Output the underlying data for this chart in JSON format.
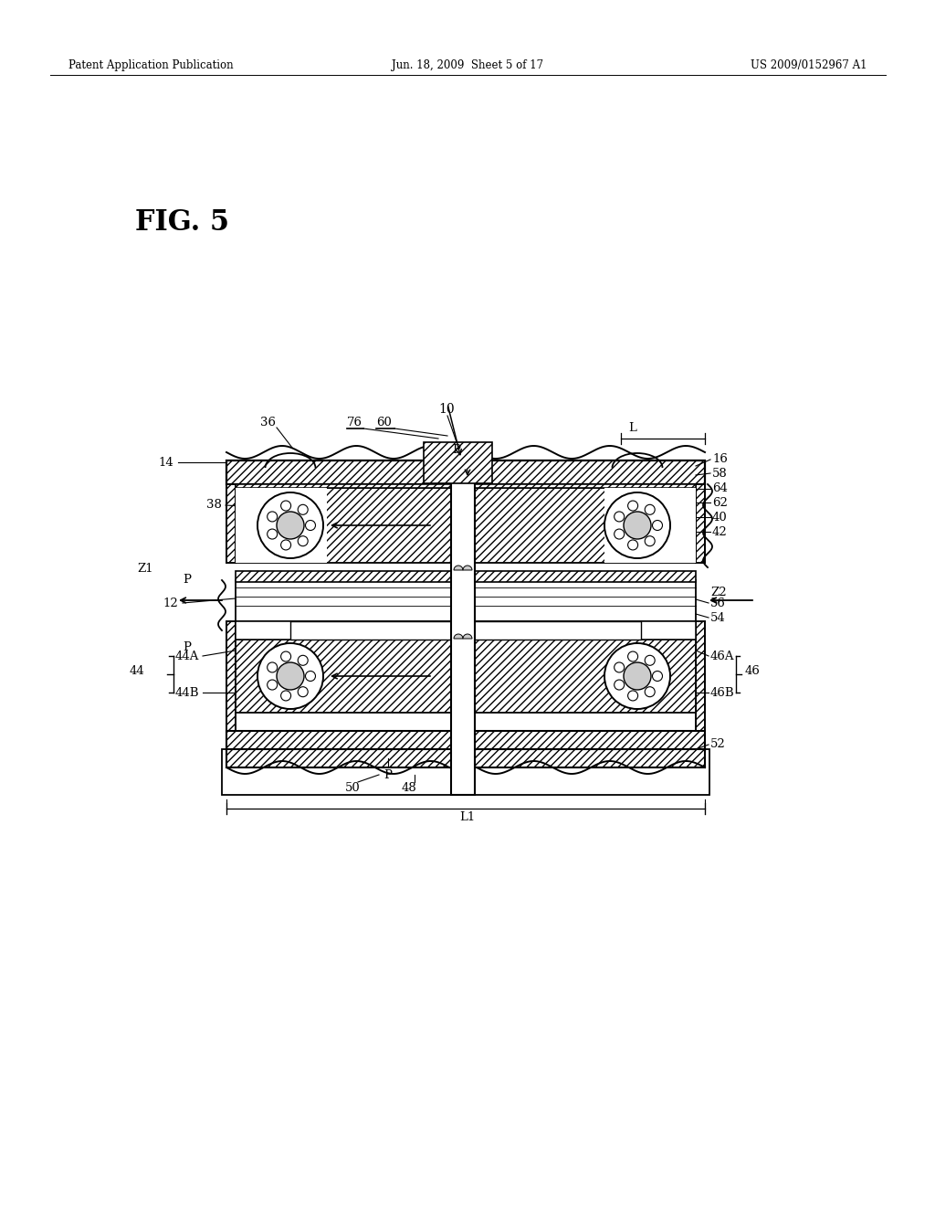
{
  "header_left": "Patent Application Publication",
  "header_center": "Jun. 18, 2009  Sheet 5 of 17",
  "header_right": "US 2009/0152967 A1",
  "fig_label": "FIG. 5",
  "background": "#ffffff"
}
